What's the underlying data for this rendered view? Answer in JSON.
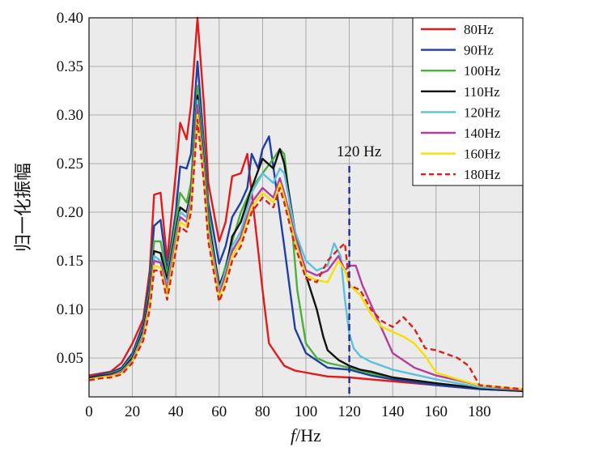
{
  "chart_data": {
    "type": "line",
    "xlabel_italic": "f",
    "xlabel_rest": "/Hz",
    "ylabel": "归一化振幅",
    "xlim": [
      0,
      200
    ],
    "ylim": [
      0.01,
      0.4
    ],
    "xticks": [
      0,
      20,
      40,
      60,
      80,
      100,
      120,
      140,
      160,
      180
    ],
    "yticks": [
      0.05,
      0.1,
      0.15,
      0.2,
      0.25,
      0.3,
      0.35,
      0.4
    ],
    "ytick_labels": [
      "0.05",
      "0.10",
      "0.15",
      "0.20",
      "0.25",
      "0.30",
      "0.35",
      "0.40"
    ],
    "grid": true,
    "legend_position": "top-right",
    "annotation": {
      "label": "120 Hz",
      "x": 120,
      "color": "#1f2f8f"
    },
    "series": [
      {
        "name": "80Hz",
        "color": "#e31a1c",
        "dash": "solid",
        "x": [
          0,
          5,
          10,
          15,
          20,
          25,
          28,
          30,
          33,
          36,
          40,
          42,
          45,
          47,
          50,
          53,
          55,
          60,
          63,
          66,
          70,
          73,
          75,
          77,
          80,
          83,
          86,
          90,
          95,
          100,
          110,
          120,
          140,
          160,
          180,
          200
        ],
        "y": [
          0.032,
          0.034,
          0.036,
          0.045,
          0.065,
          0.09,
          0.14,
          0.218,
          0.22,
          0.15,
          0.24,
          0.292,
          0.275,
          0.31,
          0.4,
          0.31,
          0.23,
          0.17,
          0.19,
          0.237,
          0.24,
          0.26,
          0.22,
          0.18,
          0.12,
          0.065,
          0.055,
          0.042,
          0.037,
          0.035,
          0.031,
          0.03,
          0.026,
          0.022,
          0.018,
          0.016
        ]
      },
      {
        "name": "90Hz",
        "color": "#1f3fa5",
        "dash": "solid",
        "x": [
          0,
          5,
          10,
          15,
          20,
          25,
          28,
          30,
          33,
          36,
          40,
          42,
          45,
          47,
          50,
          53,
          55,
          60,
          63,
          66,
          70,
          73,
          75,
          78,
          80,
          83,
          86,
          90,
          95,
          100,
          110,
          120,
          130,
          140,
          160,
          180,
          200
        ],
        "y": [
          0.03,
          0.033,
          0.035,
          0.04,
          0.055,
          0.085,
          0.13,
          0.186,
          0.192,
          0.14,
          0.2,
          0.247,
          0.245,
          0.26,
          0.355,
          0.27,
          0.21,
          0.147,
          0.165,
          0.195,
          0.21,
          0.225,
          0.26,
          0.245,
          0.265,
          0.278,
          0.23,
          0.165,
          0.08,
          0.055,
          0.04,
          0.038,
          0.032,
          0.028,
          0.022,
          0.018,
          0.016
        ]
      },
      {
        "name": "100Hz",
        "color": "#4ab03a",
        "dash": "solid",
        "x": [
          0,
          5,
          10,
          15,
          20,
          25,
          28,
          30,
          33,
          36,
          40,
          42,
          45,
          47,
          50,
          53,
          55,
          60,
          63,
          66,
          70,
          75,
          80,
          85,
          88,
          90,
          93,
          96,
          100,
          105,
          110,
          120,
          130,
          140,
          160,
          180,
          200
        ],
        "y": [
          0.029,
          0.031,
          0.034,
          0.038,
          0.052,
          0.08,
          0.12,
          0.17,
          0.17,
          0.135,
          0.19,
          0.22,
          0.21,
          0.23,
          0.33,
          0.26,
          0.2,
          0.122,
          0.145,
          0.17,
          0.2,
          0.225,
          0.24,
          0.255,
          0.265,
          0.26,
          0.2,
          0.12,
          0.065,
          0.05,
          0.045,
          0.04,
          0.034,
          0.03,
          0.024,
          0.019,
          0.016
        ]
      },
      {
        "name": "110Hz",
        "color": "#111111",
        "dash": "solid",
        "x": [
          0,
          5,
          10,
          15,
          20,
          25,
          28,
          30,
          33,
          36,
          40,
          42,
          45,
          47,
          50,
          53,
          55,
          60,
          63,
          66,
          70,
          75,
          80,
          85,
          88,
          90,
          95,
          100,
          105,
          108,
          110,
          115,
          120,
          125,
          130,
          140,
          160,
          180,
          200
        ],
        "y": [
          0.029,
          0.031,
          0.033,
          0.037,
          0.05,
          0.078,
          0.115,
          0.16,
          0.158,
          0.13,
          0.18,
          0.205,
          0.2,
          0.22,
          0.32,
          0.25,
          0.19,
          0.125,
          0.14,
          0.175,
          0.19,
          0.225,
          0.255,
          0.245,
          0.265,
          0.25,
          0.18,
          0.135,
          0.1,
          0.072,
          0.058,
          0.048,
          0.042,
          0.038,
          0.036,
          0.03,
          0.024,
          0.019,
          0.016
        ]
      },
      {
        "name": "120Hz",
        "color": "#5bc0e0",
        "dash": "solid",
        "x": [
          0,
          5,
          10,
          15,
          20,
          25,
          28,
          30,
          33,
          36,
          40,
          42,
          45,
          47,
          50,
          53,
          55,
          60,
          63,
          66,
          70,
          75,
          80,
          85,
          88,
          90,
          95,
          100,
          105,
          110,
          113,
          116,
          118,
          120,
          122,
          125,
          130,
          140,
          160,
          180,
          200
        ],
        "y": [
          0.028,
          0.03,
          0.032,
          0.036,
          0.048,
          0.075,
          0.11,
          0.155,
          0.15,
          0.125,
          0.175,
          0.2,
          0.195,
          0.215,
          0.315,
          0.245,
          0.185,
          0.12,
          0.14,
          0.165,
          0.18,
          0.22,
          0.24,
          0.23,
          0.245,
          0.24,
          0.18,
          0.15,
          0.14,
          0.145,
          0.168,
          0.155,
          0.11,
          0.075,
          0.06,
          0.052,
          0.046,
          0.038,
          0.028,
          0.02,
          0.017
        ]
      },
      {
        "name": "140Hz",
        "color": "#b33ea0",
        "dash": "solid",
        "x": [
          0,
          5,
          10,
          15,
          20,
          25,
          28,
          30,
          33,
          36,
          40,
          42,
          45,
          47,
          50,
          53,
          55,
          60,
          63,
          66,
          70,
          75,
          80,
          85,
          88,
          90,
          95,
          100,
          105,
          110,
          115,
          118,
          120,
          123,
          126,
          130,
          135,
          140,
          150,
          160,
          180,
          200
        ],
        "y": [
          0.028,
          0.03,
          0.032,
          0.035,
          0.047,
          0.072,
          0.11,
          0.15,
          0.148,
          0.12,
          0.17,
          0.195,
          0.19,
          0.21,
          0.31,
          0.24,
          0.18,
          0.115,
          0.135,
          0.16,
          0.175,
          0.21,
          0.225,
          0.215,
          0.235,
          0.22,
          0.175,
          0.14,
          0.135,
          0.14,
          0.155,
          0.14,
          0.145,
          0.145,
          0.125,
          0.105,
          0.08,
          0.055,
          0.04,
          0.032,
          0.022,
          0.017
        ]
      },
      {
        "name": "160Hz",
        "color": "#f5e000",
        "dash": "solid",
        "x": [
          0,
          5,
          10,
          15,
          20,
          25,
          28,
          30,
          33,
          36,
          40,
          42,
          45,
          47,
          50,
          53,
          55,
          60,
          63,
          66,
          70,
          75,
          80,
          85,
          88,
          90,
          95,
          100,
          105,
          110,
          115,
          118,
          120,
          125,
          130,
          135,
          140,
          145,
          150,
          155,
          160,
          170,
          180,
          200
        ],
        "y": [
          0.028,
          0.03,
          0.031,
          0.034,
          0.046,
          0.07,
          0.105,
          0.145,
          0.143,
          0.115,
          0.165,
          0.19,
          0.185,
          0.205,
          0.3,
          0.235,
          0.175,
          0.112,
          0.13,
          0.155,
          0.17,
          0.205,
          0.22,
          0.21,
          0.23,
          0.215,
          0.17,
          0.135,
          0.13,
          0.128,
          0.15,
          0.14,
          0.125,
          0.115,
          0.095,
          0.082,
          0.077,
          0.072,
          0.065,
          0.052,
          0.035,
          0.028,
          0.022,
          0.018
        ]
      },
      {
        "name": "180Hz",
        "color": "#d8201c",
        "dash": "dashed",
        "x": [
          0,
          5,
          10,
          15,
          20,
          25,
          28,
          30,
          33,
          36,
          40,
          42,
          45,
          47,
          50,
          53,
          55,
          60,
          63,
          66,
          70,
          75,
          80,
          85,
          88,
          90,
          95,
          100,
          105,
          110,
          115,
          118,
          120,
          125,
          130,
          135,
          140,
          145,
          150,
          155,
          160,
          170,
          175,
          180,
          200
        ],
        "y": [
          0.027,
          0.029,
          0.03,
          0.033,
          0.045,
          0.068,
          0.1,
          0.14,
          0.14,
          0.11,
          0.16,
          0.185,
          0.18,
          0.2,
          0.295,
          0.23,
          0.17,
          0.108,
          0.125,
          0.15,
          0.165,
          0.2,
          0.215,
          0.205,
          0.225,
          0.21,
          0.165,
          0.132,
          0.128,
          0.15,
          0.162,
          0.168,
          0.125,
          0.12,
          0.1,
          0.088,
          0.082,
          0.092,
          0.08,
          0.06,
          0.058,
          0.05,
          0.042,
          0.022,
          0.018
        ]
      }
    ]
  }
}
